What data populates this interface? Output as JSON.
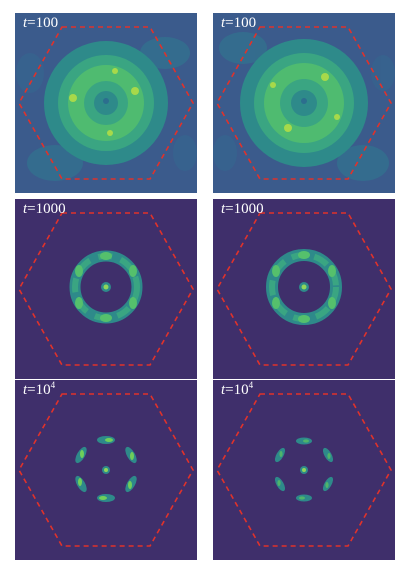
{
  "colors": {
    "background": "#ffffff",
    "panel_background": "#3f2f6b",
    "noisy_background": "#3b5b8c",
    "density_low": "#2e8a8a",
    "density_mid": "#3cb47a",
    "density_high": "#a7d94a",
    "hexagon": "#e0322b"
  },
  "panels": [
    {
      "time_var": "t",
      "time_eq": "=100",
      "time_base": "",
      "time_exp": ""
    },
    {
      "time_var": "t",
      "time_eq": "=100",
      "time_base": "",
      "time_exp": ""
    },
    {
      "time_var": "t",
      "time_eq": "=1000",
      "time_base": "",
      "time_exp": ""
    },
    {
      "time_var": "t",
      "time_eq": "=1000",
      "time_base": "",
      "time_exp": ""
    },
    {
      "time_var": "t",
      "time_eq": "=10",
      "time_base": "",
      "time_exp": "4"
    },
    {
      "time_var": "t",
      "time_eq": "=10",
      "time_base": "",
      "time_exp": "4"
    }
  ]
}
